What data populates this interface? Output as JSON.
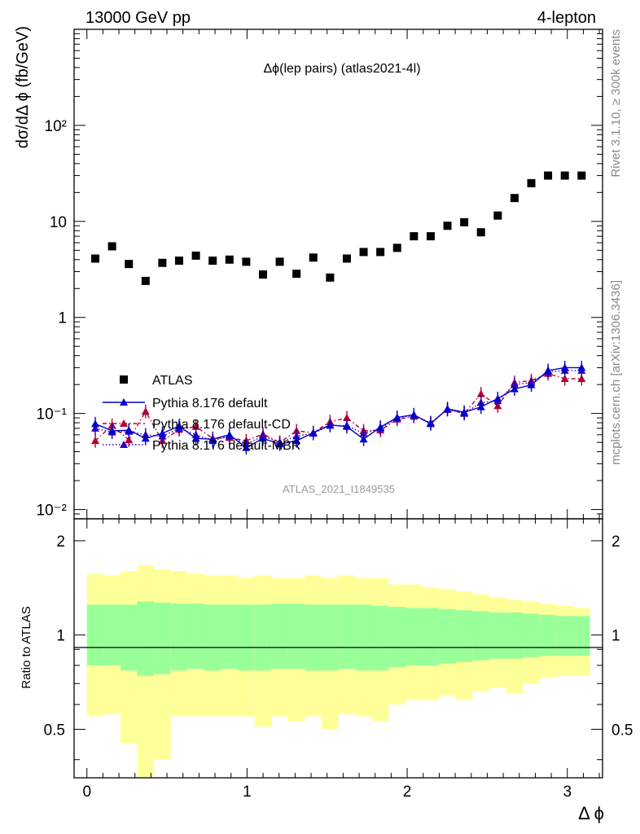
{
  "header": {
    "left": "13000 GeV pp",
    "right": "4-lepton"
  },
  "side_labels": {
    "rivet": "Rivet 3.1.10, ≥ 300k events",
    "mcplots": "mcplots.cern.ch [arXiv:1306.3436]"
  },
  "plot": {
    "title": "Δϕ(lep pairs) (atlas2021-4l)",
    "watermark": "ATLAS_2021_I1849535",
    "ylabel": "dσ/dΔ ϕ (fb/GeV)",
    "xlabel": "Δ ϕ",
    "ratio_ylabel": "Ratio to ATLAS",
    "main_yticks": [
      "10⁻²",
      "10⁻¹",
      "1",
      "10",
      "10²"
    ],
    "ratio_yticks": [
      "0.5",
      "1",
      "2"
    ],
    "xticks": [
      "0",
      "1",
      "2",
      "3"
    ]
  },
  "colors": {
    "atlas": "#000000",
    "default": "#0000cc",
    "cd": "#b30033",
    "mbr": "#3300b3",
    "band_inner": "#99ff99",
    "band_outer": "#ffff99"
  },
  "chart_data": {
    "type": "scatter",
    "x_range": [
      -0.08,
      3.22
    ],
    "y_range": [
      0.008,
      1000
    ],
    "y_scale": "log",
    "ratio_range": [
      0.35,
      2.35
    ],
    "ratio_scale": "log",
    "legend_position": "middle-left",
    "x": [
      0.0524,
      0.1571,
      0.2618,
      0.3665,
      0.4712,
      0.576,
      0.6807,
      0.7854,
      0.8901,
      0.9948,
      1.0996,
      1.2043,
      1.309,
      1.4137,
      1.5184,
      1.6232,
      1.7279,
      1.8326,
      1.9373,
      2.042,
      2.1468,
      2.2515,
      2.3562,
      2.4609,
      2.5656,
      2.6704,
      2.7751,
      2.8798,
      2.9845,
      3.0892
    ],
    "series": [
      {
        "name": "ATLAS",
        "values": [
          4.1,
          5.5,
          3.6,
          2.4,
          3.7,
          3.9,
          4.4,
          3.9,
          4.0,
          3.8,
          2.8,
          3.8,
          2.85,
          4.2,
          2.6,
          4.1,
          4.8,
          4.8,
          5.3,
          7.0,
          7.0,
          9.0,
          9.8,
          7.7,
          11.5,
          17.5,
          25.0,
          30.0,
          30.0,
          30.0
        ]
      },
      {
        "name": "Pythia 8.176 default",
        "values": [
          0.078,
          0.066,
          0.067,
          0.055,
          0.062,
          0.074,
          0.055,
          0.054,
          0.06,
          0.044,
          0.055,
          0.048,
          0.052,
          0.063,
          0.076,
          0.073,
          0.054,
          0.072,
          0.091,
          0.097,
          0.078,
          0.112,
          0.103,
          0.117,
          0.143,
          0.18,
          0.198,
          0.28,
          0.3,
          0.3
        ]
      },
      {
        "name": "Pythia 8.176 default-CD",
        "values": [
          0.052,
          0.075,
          0.053,
          0.105,
          0.052,
          0.068,
          0.073,
          0.055,
          0.056,
          0.052,
          0.061,
          0.05,
          0.066,
          0.063,
          0.082,
          0.09,
          0.066,
          0.067,
          0.087,
          0.093,
          0.08,
          0.11,
          0.1,
          0.16,
          0.12,
          0.21,
          0.22,
          0.26,
          0.23,
          0.23
        ]
      },
      {
        "name": "Pythia 8.176 default-MBR",
        "values": [
          0.07,
          0.064,
          0.065,
          0.06,
          0.058,
          0.07,
          0.06,
          0.052,
          0.058,
          0.048,
          0.058,
          0.05,
          0.058,
          0.062,
          0.075,
          0.075,
          0.062,
          0.07,
          0.09,
          0.095,
          0.08,
          0.11,
          0.1,
          0.13,
          0.135,
          0.2,
          0.21,
          0.27,
          0.28,
          0.28
        ]
      }
    ],
    "ratio_bands": {
      "inner_upper": [
        1.25,
        1.25,
        1.25,
        1.28,
        1.27,
        1.26,
        1.26,
        1.25,
        1.25,
        1.25,
        1.25,
        1.26,
        1.26,
        1.25,
        1.25,
        1.25,
        1.25,
        1.24,
        1.23,
        1.22,
        1.22,
        1.21,
        1.2,
        1.19,
        1.18,
        1.18,
        1.17,
        1.16,
        1.15,
        1.15
      ],
      "inner_lower": [
        0.8,
        0.8,
        0.77,
        0.74,
        0.75,
        0.77,
        0.78,
        0.77,
        0.78,
        0.77,
        0.77,
        0.78,
        0.78,
        0.77,
        0.77,
        0.78,
        0.77,
        0.77,
        0.79,
        0.8,
        0.8,
        0.81,
        0.82,
        0.83,
        0.84,
        0.84,
        0.85,
        0.86,
        0.86,
        0.86
      ],
      "outer_upper": [
        1.57,
        1.55,
        1.6,
        1.67,
        1.62,
        1.6,
        1.57,
        1.55,
        1.55,
        1.52,
        1.55,
        1.52,
        1.52,
        1.55,
        1.52,
        1.55,
        1.52,
        1.52,
        1.45,
        1.45,
        1.42,
        1.4,
        1.38,
        1.35,
        1.32,
        1.3,
        1.28,
        1.26,
        1.24,
        1.22
      ],
      "outer_lower": [
        0.55,
        0.56,
        0.45,
        0.35,
        0.4,
        0.55,
        0.55,
        0.55,
        0.55,
        0.55,
        0.51,
        0.55,
        0.53,
        0.55,
        0.5,
        0.56,
        0.55,
        0.53,
        0.6,
        0.62,
        0.62,
        0.64,
        0.62,
        0.66,
        0.68,
        0.65,
        0.7,
        0.73,
        0.74,
        0.74
      ]
    }
  }
}
